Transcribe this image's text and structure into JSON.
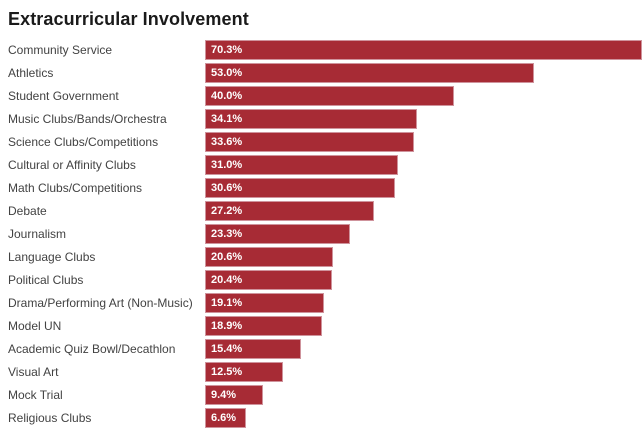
{
  "colors": {
    "bar_fill": "#a72b35",
    "bar_border": "#cf939c",
    "value_text": "#ffffff",
    "label_text": "#424242",
    "title_text": "#1a1a1a",
    "background": "#ffffff"
  },
  "chart_data": {
    "type": "bar",
    "orientation": "horizontal",
    "title": "Extracurricular Involvement",
    "categories": [
      "Community Service",
      "Athletics",
      "Student Government",
      "Music Clubs/Bands/Orchestra",
      "Science Clubs/Competitions",
      "Cultural or Affinity Clubs",
      "Math Clubs/Competitions",
      "Debate",
      "Journalism",
      "Language Clubs",
      "Political Clubs",
      "Drama/Performing Art (Non-Music)",
      "Model UN",
      "Academic Quiz Bowl/Decathlon",
      "Visual Art",
      "Mock Trial",
      "Religious Clubs"
    ],
    "values": [
      70.3,
      53.0,
      40.0,
      34.1,
      33.6,
      31.0,
      30.6,
      27.2,
      23.3,
      20.6,
      20.4,
      19.1,
      18.9,
      15.4,
      12.5,
      9.4,
      6.6
    ],
    "value_labels": [
      "70.3%",
      "53.0%",
      "40.0%",
      "34.1%",
      "33.6%",
      "31.0%",
      "30.6%",
      "27.2%",
      "23.3%",
      "20.6%",
      "20.4%",
      "19.1%",
      "18.9%",
      "15.4%",
      "12.5%",
      "9.4%",
      "6.6%"
    ],
    "value_suffix": "%",
    "xlabel": "",
    "ylabel": "",
    "xlim": [
      0,
      70.3
    ],
    "grid": false,
    "legend": false,
    "bar_labels_inside": true
  }
}
